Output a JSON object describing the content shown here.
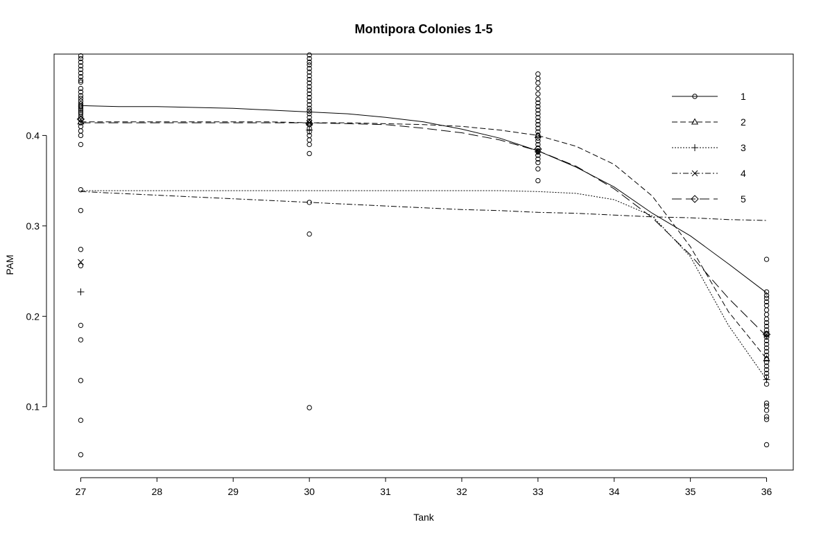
{
  "chart_data": {
    "type": "scatter",
    "title": "Montipora Colonies 1-5",
    "xlabel": "Tank",
    "ylabel": "PAM",
    "xlim": [
      26.65,
      36.35
    ],
    "ylim": [
      0.03,
      0.49
    ],
    "x_ticks": [
      27,
      28,
      29,
      30,
      31,
      32,
      33,
      34,
      35,
      36
    ],
    "y_ticks": [
      0.1,
      0.2,
      0.3,
      0.4
    ],
    "x_tick_labels": [
      "27",
      "28",
      "29",
      "30",
      "31",
      "32",
      "33",
      "34",
      "35",
      "36"
    ],
    "y_tick_labels": [
      "0.1",
      "0.2",
      "0.3",
      "0.4"
    ],
    "grid": false,
    "legend_position": "top-right",
    "colors": {
      "ink": "#000000",
      "background": "#ffffff"
    },
    "observations": {
      "marker": "circle",
      "points": [
        {
          "x": 27,
          "values": [
            0.488,
            0.485,
            0.481,
            0.477,
            0.473,
            0.469,
            0.465,
            0.461,
            0.459,
            0.452,
            0.448,
            0.444,
            0.441,
            0.438,
            0.435,
            0.432,
            0.43,
            0.428,
            0.426,
            0.424,
            0.421,
            0.418,
            0.414,
            0.41,
            0.405,
            0.4,
            0.39,
            0.34,
            0.317,
            0.274,
            0.256,
            0.19,
            0.174,
            0.129,
            0.085,
            0.047
          ]
        },
        {
          "x": 30,
          "values": [
            0.489,
            0.485,
            0.481,
            0.478,
            0.474,
            0.47,
            0.466,
            0.462,
            0.458,
            0.454,
            0.45,
            0.446,
            0.442,
            0.438,
            0.434,
            0.43,
            0.427,
            0.424,
            0.42,
            0.416,
            0.412,
            0.408,
            0.404,
            0.4,
            0.395,
            0.39,
            0.38,
            0.326,
            0.291,
            0.099
          ]
        },
        {
          "x": 33,
          "values": [
            0.468,
            0.463,
            0.458,
            0.452,
            0.446,
            0.44,
            0.436,
            0.432,
            0.428,
            0.424,
            0.42,
            0.416,
            0.412,
            0.408,
            0.404,
            0.4,
            0.397,
            0.394,
            0.39,
            0.386,
            0.382,
            0.378,
            0.374,
            0.37,
            0.363,
            0.35
          ]
        },
        {
          "x": 36,
          "values": [
            0.263,
            0.227,
            0.223,
            0.22,
            0.216,
            0.212,
            0.207,
            0.202,
            0.197,
            0.193,
            0.189,
            0.185,
            0.181,
            0.177,
            0.173,
            0.169,
            0.165,
            0.161,
            0.157,
            0.153,
            0.149,
            0.145,
            0.141,
            0.137,
            0.133,
            0.125,
            0.104,
            0.101,
            0.096,
            0.089,
            0.086,
            0.058
          ]
        }
      ]
    },
    "series": [
      {
        "name": "1",
        "marker": "circle",
        "dash": "none",
        "x": [
          27,
          27.5,
          28,
          28.5,
          29,
          29.5,
          30,
          30.5,
          31,
          31.5,
          32,
          32.5,
          33,
          33.5,
          34,
          34.5,
          35,
          35.5,
          36
        ],
        "y": [
          0.433,
          0.432,
          0.432,
          0.431,
          0.43,
          0.428,
          0.426,
          0.424,
          0.42,
          0.415,
          0.407,
          0.397,
          0.383,
          0.365,
          0.343,
          0.314,
          0.289,
          0.258,
          0.226
        ],
        "mean_points": [
          [
            27,
            0.433
          ],
          [
            30,
            0.427
          ],
          [
            33,
            0.383
          ],
          [
            36,
            0.18
          ]
        ]
      },
      {
        "name": "2",
        "marker": "triangle",
        "dash": "8,4",
        "x": [
          27,
          27.5,
          28,
          28.5,
          29,
          29.5,
          30,
          30.5,
          31,
          31.5,
          32,
          32.5,
          33,
          33.5,
          34,
          34.5,
          35,
          35.5,
          36
        ],
        "y": [
          0.415,
          0.415,
          0.415,
          0.415,
          0.415,
          0.415,
          0.414,
          0.414,
          0.413,
          0.412,
          0.41,
          0.406,
          0.4,
          0.388,
          0.368,
          0.333,
          0.277,
          0.205,
          0.153
        ],
        "mean_points": [
          [
            27,
            0.415
          ],
          [
            30,
            0.414
          ],
          [
            33,
            0.4
          ],
          [
            36,
            0.153
          ]
        ]
      },
      {
        "name": "3",
        "marker": "plus",
        "dash": "2,2",
        "x": [
          27,
          27.5,
          28,
          28.5,
          29,
          29.5,
          30,
          30.5,
          31,
          31.5,
          32,
          32.5,
          33,
          33.5,
          34,
          34.5,
          35,
          35.5,
          36
        ],
        "y": [
          0.339,
          0.339,
          0.339,
          0.339,
          0.339,
          0.339,
          0.339,
          0.339,
          0.339,
          0.339,
          0.339,
          0.339,
          0.338,
          0.336,
          0.329,
          0.311,
          0.266,
          0.19,
          0.13
        ],
        "mean_points": [
          [
            27,
            0.227
          ],
          [
            30,
            0.406
          ],
          [
            33,
            0.382
          ],
          [
            36,
            0.13
          ]
        ]
      },
      {
        "name": "4",
        "marker": "cross",
        "dash": "8,3,2,3",
        "x": [
          27,
          27.5,
          28,
          28.5,
          29,
          29.5,
          30,
          30.5,
          31,
          31.5,
          32,
          32.5,
          33,
          33.5,
          34,
          34.5,
          35,
          35.5,
          36
        ],
        "y": [
          0.338,
          0.336,
          0.334,
          0.332,
          0.33,
          0.328,
          0.326,
          0.324,
          0.322,
          0.32,
          0.318,
          0.317,
          0.315,
          0.314,
          0.312,
          0.31,
          0.309,
          0.307,
          0.306
        ],
        "mean_points": [
          [
            27,
            0.26
          ],
          [
            30,
            0.414
          ],
          [
            33,
            0.381
          ],
          [
            36,
            0.18
          ]
        ]
      },
      {
        "name": "5",
        "marker": "diamond",
        "dash": "14,6",
        "x": [
          27,
          27.5,
          28,
          28.5,
          29,
          29.5,
          30,
          30.5,
          31,
          31.5,
          32,
          32.5,
          33,
          33.5,
          34,
          34.5,
          35,
          35.5,
          36
        ],
        "y": [
          0.414,
          0.414,
          0.414,
          0.414,
          0.414,
          0.414,
          0.414,
          0.413,
          0.412,
          0.408,
          0.403,
          0.395,
          0.383,
          0.366,
          0.341,
          0.309,
          0.268,
          0.22,
          0.178
        ],
        "mean_points": [
          [
            27,
            0.418
          ],
          [
            30,
            0.413
          ],
          [
            33,
            0.385
          ],
          [
            36,
            0.18
          ]
        ]
      }
    ]
  }
}
